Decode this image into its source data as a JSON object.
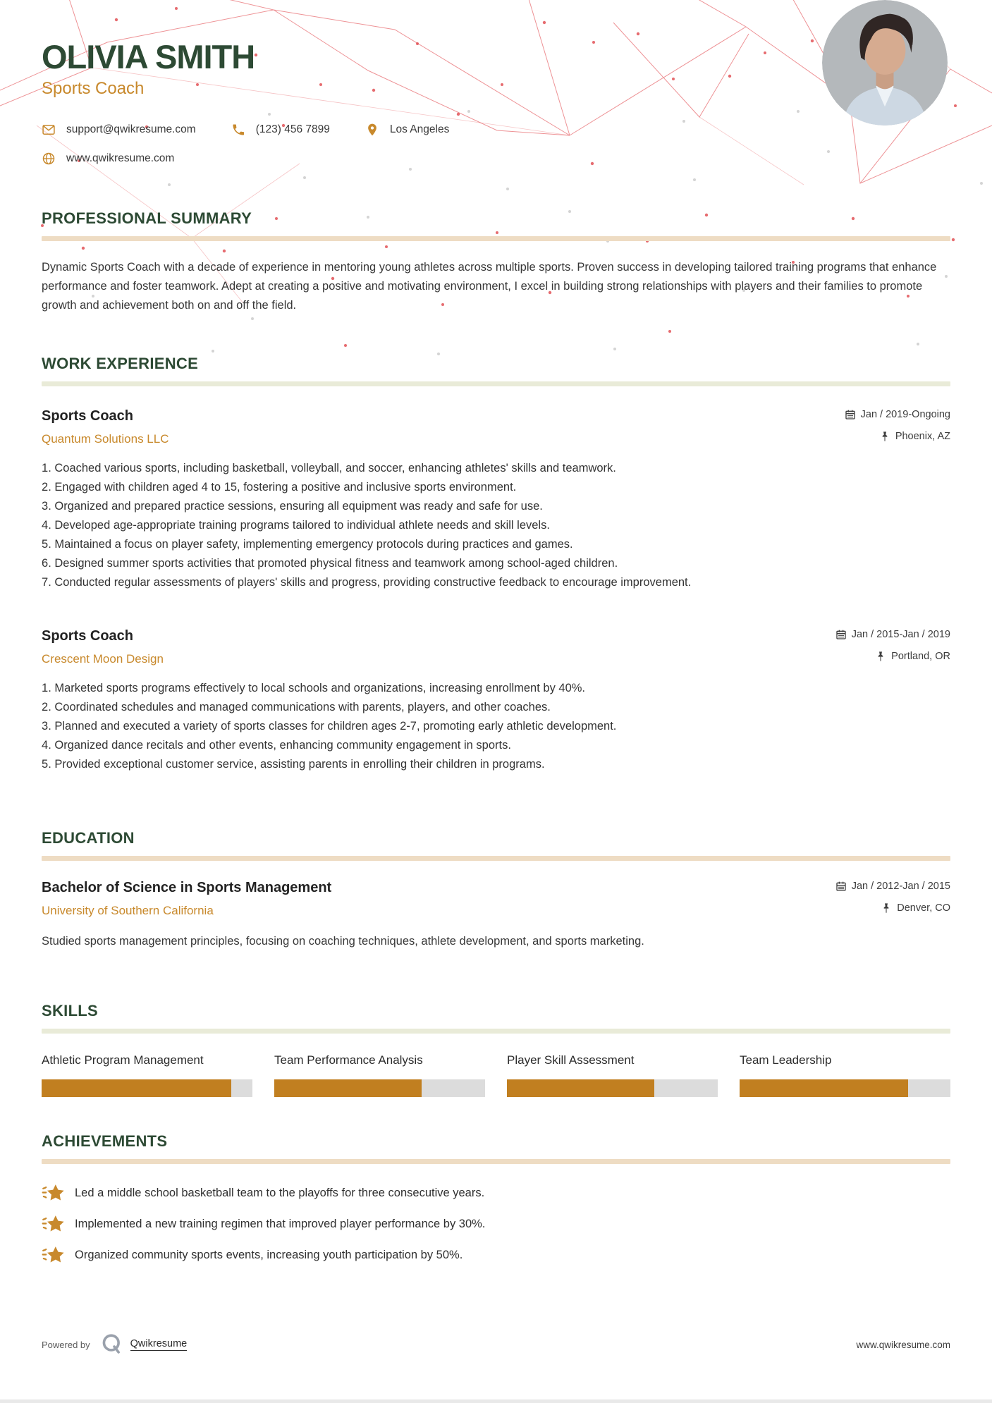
{
  "colors": {
    "accent_green": "#2d4a34",
    "accent_gold": "#c8892c",
    "bar_gold": "#c17f20",
    "bar_track_gray": "#dcdcdc",
    "rule_tan": "#eedcc3",
    "rule_olive": "#e9ebd8",
    "mesh_red": "#e03a40"
  },
  "header": {
    "name": "OLIVIA SMITH",
    "title": "Sports Coach",
    "contacts": {
      "email": {
        "icon": "email-icon",
        "text": "support@qwikresume.com"
      },
      "phone": {
        "icon": "phone-icon",
        "text": "(123) 456 7899"
      },
      "location": {
        "icon": "location-pin-icon",
        "text": "Los Angeles"
      },
      "website": {
        "icon": "globe-icon",
        "text": "www.qwikresume.com"
      }
    }
  },
  "sections": {
    "summary": {
      "heading": "PROFESSIONAL SUMMARY",
      "text": "Dynamic Sports Coach with a decade of experience in mentoring young athletes across multiple sports. Proven success in developing tailored training programs that enhance performance and foster teamwork. Adept at creating a positive and motivating environment, I excel in building strong relationships with players and their families to promote growth and achievement both on and off the field."
    },
    "work": {
      "heading": "WORK EXPERIENCE",
      "jobs": [
        {
          "title": "Sports Coach",
          "company": "Quantum Solutions LLC",
          "date": "Jan / 2019-Ongoing",
          "location": "Phoenix, AZ",
          "bullets": [
            "Coached various sports, including basketball, volleyball, and soccer, enhancing athletes' skills and teamwork.",
            "Engaged with children aged 4 to 15, fostering a positive and inclusive sports environment.",
            "Organized and prepared practice sessions, ensuring all equipment was ready and safe for use.",
            "Developed age-appropriate training programs tailored to individual athlete needs and skill levels.",
            "Maintained a focus on player safety, implementing emergency protocols during practices and games.",
            "Designed summer sports activities that promoted physical fitness and teamwork among school-aged children.",
            "Conducted regular assessments of players' skills and progress, providing constructive feedback to encourage improvement."
          ]
        },
        {
          "title": "Sports Coach",
          "company": "Crescent Moon Design",
          "date": "Jan / 2015-Jan / 2019",
          "location": "Portland, OR",
          "bullets": [
            "Marketed sports programs effectively to local schools and organizations, increasing enrollment by 40%.",
            "Coordinated schedules and managed communications with parents, players, and other coaches.",
            "Planned and executed a variety of sports classes for children ages 2-7, promoting early athletic development.",
            "Organized dance recitals and other events, enhancing community engagement in sports.",
            "Provided exceptional customer service, assisting parents in enrolling their children in programs."
          ]
        }
      ]
    },
    "education": {
      "heading": "EDUCATION",
      "degree": "Bachelor of Science in Sports Management",
      "school": "University of Southern California",
      "date": "Jan / 2012-Jan / 2015",
      "location": "Denver, CO",
      "description": "Studied sports management principles, focusing on coaching techniques, athlete development, and sports marketing."
    },
    "skills": {
      "heading": "SKILLS",
      "items": [
        {
          "label": "Athletic Program Management",
          "percent": 90
        },
        {
          "label": "Team Performance Analysis",
          "percent": 70
        },
        {
          "label": "Player Skill Assessment",
          "percent": 70
        },
        {
          "label": "Team Leadership",
          "percent": 80
        }
      ]
    },
    "achievements": {
      "heading": "ACHIEVEMENTS",
      "items": [
        "Led a middle school basketball team to the playoffs for three consecutive years.",
        "Implemented a new training regimen that improved player performance by 30%.",
        "Organized community sports events, increasing youth participation by 50%."
      ]
    }
  },
  "footer": {
    "powered_by": "Powered by",
    "brand": "Qwikresume",
    "site": "www.qwikresume.com"
  }
}
